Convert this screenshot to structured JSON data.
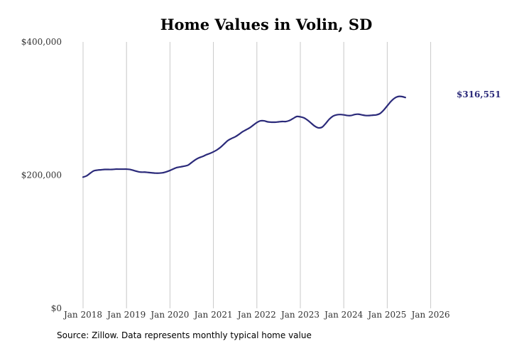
{
  "chart_data": {
    "type": "line",
    "title": "Home Values in Volin, SD",
    "xlabel": "",
    "ylabel": "",
    "ylim": [
      0,
      400000
    ],
    "y_ticks": [
      {
        "value": 0,
        "label": "$0"
      },
      {
        "value": 200000,
        "label": "$200,000"
      },
      {
        "value": 400000,
        "label": "$400,000"
      }
    ],
    "x_ticks": [
      {
        "value": "2018-01",
        "label": "Jan 2018"
      },
      {
        "value": "2019-01",
        "label": "Jan 2019"
      },
      {
        "value": "2020-01",
        "label": "Jan 2020"
      },
      {
        "value": "2021-01",
        "label": "Jan 2021"
      },
      {
        "value": "2022-01",
        "label": "Jan 2022"
      },
      {
        "value": "2023-01",
        "label": "Jan 2023"
      },
      {
        "value": "2024-01",
        "label": "Jan 2024"
      },
      {
        "value": "2025-01",
        "label": "Jan 2025"
      },
      {
        "value": "2026-01",
        "label": "Jan 2026"
      }
    ],
    "grid": "vertical",
    "line_color": "#2b2a7a",
    "end_label": "$316,551",
    "series": [
      {
        "points": [
          [
            "2018-01",
            197000
          ],
          [
            "2018-02",
            199000
          ],
          [
            "2018-03",
            203000
          ],
          [
            "2018-04",
            206500
          ],
          [
            "2018-05",
            207500
          ],
          [
            "2018-06",
            208000
          ],
          [
            "2018-07",
            208500
          ],
          [
            "2018-08",
            208500
          ],
          [
            "2018-09",
            208500
          ],
          [
            "2018-10",
            209000
          ],
          [
            "2018-11",
            209000
          ],
          [
            "2018-12",
            209000
          ],
          [
            "2019-01",
            209000
          ],
          [
            "2019-02",
            208500
          ],
          [
            "2019-03",
            207000
          ],
          [
            "2019-04",
            205500
          ],
          [
            "2019-05",
            204500
          ],
          [
            "2019-06",
            204500
          ],
          [
            "2019-07",
            204000
          ],
          [
            "2019-08",
            203500
          ],
          [
            "2019-09",
            203000
          ],
          [
            "2019-10",
            203000
          ],
          [
            "2019-11",
            203500
          ],
          [
            "2019-12",
            205000
          ],
          [
            "2020-01",
            207000
          ],
          [
            "2020-02",
            209500
          ],
          [
            "2020-03",
            211500
          ],
          [
            "2020-04",
            212500
          ],
          [
            "2020-05",
            213500
          ],
          [
            "2020-06",
            215000
          ],
          [
            "2020-07",
            219000
          ],
          [
            "2020-08",
            223000
          ],
          [
            "2020-09",
            226000
          ],
          [
            "2020-10",
            228000
          ],
          [
            "2020-11",
            230500
          ],
          [
            "2020-12",
            232500
          ],
          [
            "2021-01",
            235000
          ],
          [
            "2021-02",
            238000
          ],
          [
            "2021-03",
            242000
          ],
          [
            "2021-04",
            247000
          ],
          [
            "2021-05",
            252000
          ],
          [
            "2021-06",
            255000
          ],
          [
            "2021-07",
            257500
          ],
          [
            "2021-08",
            261000
          ],
          [
            "2021-09",
            265000
          ],
          [
            "2021-10",
            268000
          ],
          [
            "2021-11",
            271000
          ],
          [
            "2021-12",
            275000
          ],
          [
            "2022-01",
            279000
          ],
          [
            "2022-02",
            281500
          ],
          [
            "2022-03",
            281500
          ],
          [
            "2022-04",
            280000
          ],
          [
            "2022-05",
            279500
          ],
          [
            "2022-06",
            279500
          ],
          [
            "2022-07",
            280000
          ],
          [
            "2022-08",
            280500
          ],
          [
            "2022-09",
            280500
          ],
          [
            "2022-10",
            282000
          ],
          [
            "2022-11",
            285000
          ],
          [
            "2022-12",
            288000
          ],
          [
            "2023-01",
            287500
          ],
          [
            "2023-02",
            286000
          ],
          [
            "2023-03",
            282500
          ],
          [
            "2023-04",
            278000
          ],
          [
            "2023-05",
            273500
          ],
          [
            "2023-06",
            271000
          ],
          [
            "2023-07",
            272000
          ],
          [
            "2023-08",
            277500
          ],
          [
            "2023-09",
            284000
          ],
          [
            "2023-10",
            288500
          ],
          [
            "2023-11",
            290500
          ],
          [
            "2023-12",
            291000
          ],
          [
            "2024-01",
            290500
          ],
          [
            "2024-02",
            289500
          ],
          [
            "2024-03",
            289500
          ],
          [
            "2024-04",
            291000
          ],
          [
            "2024-05",
            291500
          ],
          [
            "2024-06",
            290500
          ],
          [
            "2024-07",
            289500
          ],
          [
            "2024-08",
            289500
          ],
          [
            "2024-09",
            290000
          ],
          [
            "2024-10",
            290500
          ],
          [
            "2024-11",
            292500
          ],
          [
            "2024-12",
            297500
          ],
          [
            "2025-01",
            304000
          ],
          [
            "2025-02",
            310500
          ],
          [
            "2025-03",
            315500
          ],
          [
            "2025-04",
            318000
          ],
          [
            "2025-05",
            318000
          ],
          [
            "2025-06",
            316551
          ]
        ]
      }
    ]
  },
  "source": "Source: Zillow. Data represents monthly typical home value"
}
